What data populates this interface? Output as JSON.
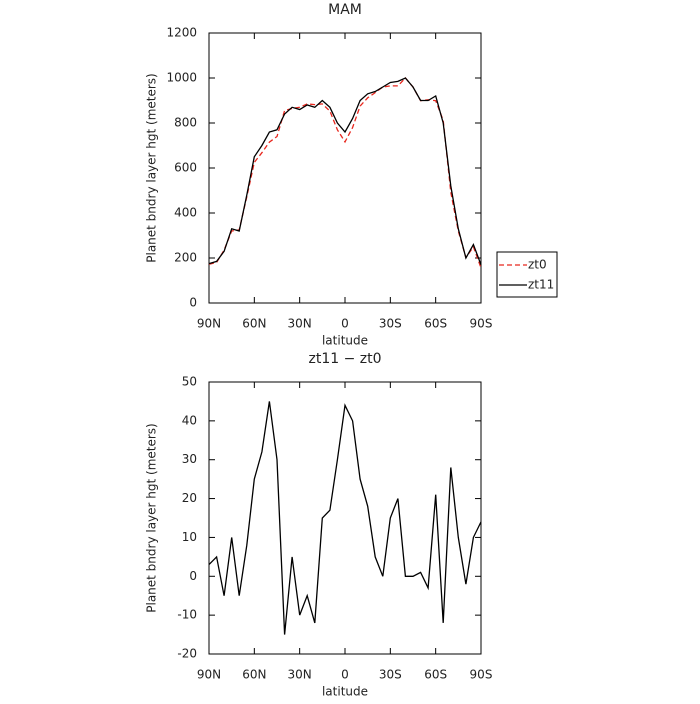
{
  "chart_data": [
    {
      "type": "line",
      "title": "MAM",
      "x_label": "latitude",
      "y_label": "Planet bndry layer hgt (meters)",
      "x": [
        90,
        85,
        80,
        75,
        70,
        65,
        60,
        55,
        50,
        45,
        40,
        35,
        30,
        25,
        20,
        15,
        10,
        5,
        0,
        -5,
        -10,
        -15,
        -20,
        -25,
        -30,
        -35,
        -40,
        -45,
        -50,
        -55,
        -60,
        -65,
        -70,
        -75,
        -80,
        -85,
        -90
      ],
      "series": [
        {
          "name": "zt0",
          "color": "#e8271e",
          "dash": true,
          "values": [
            172,
            180,
            235,
            320,
            325,
            472,
            625,
            668,
            715,
            740,
            855,
            865,
            870,
            885,
            882,
            885,
            853,
            770,
            716,
            780,
            875,
            912,
            935,
            960,
            965,
            965,
            1000,
            960,
            899,
            903,
            899,
            812,
            492,
            320,
            202,
            250,
            156
          ]
        },
        {
          "name": "zt11",
          "color": "#000000",
          "dash": false,
          "values": [
            175,
            185,
            230,
            330,
            320,
            480,
            650,
            700,
            760,
            770,
            840,
            870,
            860,
            880,
            870,
            900,
            870,
            800,
            760,
            820,
            900,
            930,
            940,
            960,
            980,
            985,
            1000,
            960,
            900,
            900,
            920,
            800,
            520,
            330,
            200,
            260,
            170
          ]
        }
      ],
      "xlim": [
        90,
        -90
      ],
      "xticks": [
        {
          "value": 90,
          "label": "90N"
        },
        {
          "value": 60,
          "label": "60N"
        },
        {
          "value": 30,
          "label": "30N"
        },
        0,
        {
          "value": -30,
          "label": "30S"
        },
        {
          "value": -60,
          "label": "60S"
        },
        {
          "value": -90,
          "label": "90S"
        }
      ],
      "ylim": [
        0,
        1200
      ],
      "yticks": [
        0,
        200,
        400,
        600,
        800,
        1000,
        1200
      ],
      "legend": "right"
    },
    {
      "type": "line",
      "title": "zt11 − zt0",
      "x_label": "latitude",
      "y_label": "Planet bndry layer hgt (meters)",
      "x": [
        90,
        85,
        80,
        75,
        70,
        65,
        60,
        55,
        50,
        45,
        40,
        35,
        30,
        25,
        20,
        15,
        10,
        5,
        0,
        -5,
        -10,
        -15,
        -20,
        -25,
        -30,
        -35,
        -40,
        -45,
        -50,
        -55,
        -60,
        -65,
        -70,
        -75,
        -80,
        -85,
        -90
      ],
      "series": [
        {
          "color": "#000000",
          "dash": false,
          "values": [
            3,
            5,
            -5,
            10,
            -5,
            8,
            25,
            32,
            45,
            30,
            -15,
            5,
            -10,
            -5,
            -12,
            15,
            17,
            30,
            44,
            40,
            25,
            18,
            5,
            0,
            15,
            20,
            0,
            0,
            1,
            -3,
            21,
            -12,
            28,
            10,
            -2,
            10,
            14
          ]
        }
      ],
      "xlim": [
        90,
        -90
      ],
      "xticks": [
        {
          "value": 90,
          "label": "90N"
        },
        {
          "value": 60,
          "label": "60N"
        },
        {
          "value": 30,
          "label": "30N"
        },
        0,
        {
          "value": -30,
          "label": "30S"
        },
        {
          "value": -60,
          "label": "60S"
        },
        {
          "value": -90,
          "label": "90S"
        }
      ],
      "ylim": [
        -20,
        50
      ],
      "yticks": [
        -20,
        -10,
        0,
        10,
        20,
        30,
        40,
        50
      ]
    }
  ]
}
